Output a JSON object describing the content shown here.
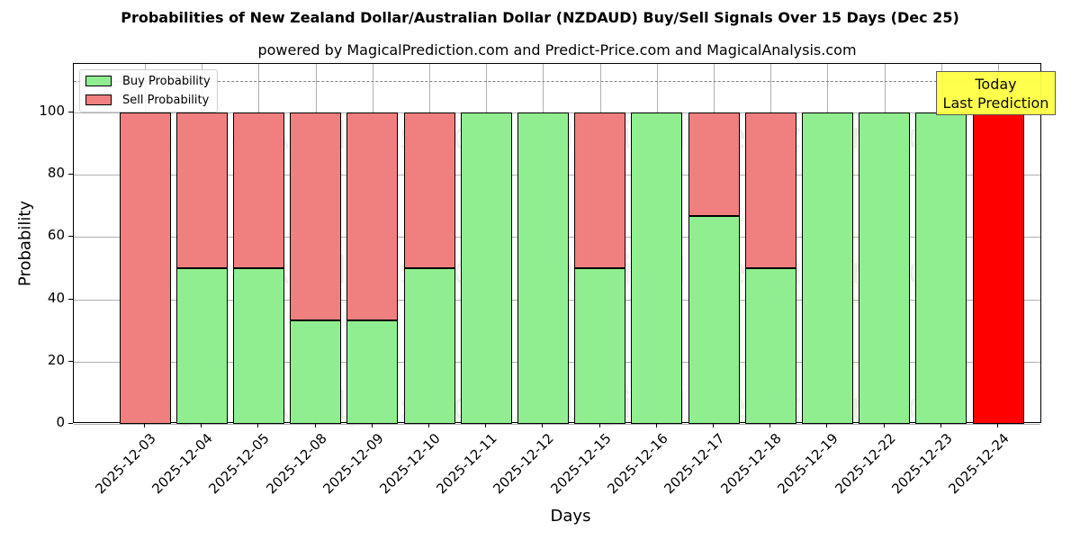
{
  "chart_data": {
    "type": "bar",
    "stacked": true,
    "title": "Probabilities of New Zealand Dollar/Australian Dollar (NZDAUD) Buy/Sell Signals Over 15 Days (Dec 25)",
    "subtitle": "powered by MagicalPrediction.com and Predict-Price.com and MagicalAnalysis.com",
    "xlabel": "Days",
    "ylabel": "Probability",
    "ylim": [
      0,
      115
    ],
    "yticks": [
      0,
      20,
      40,
      60,
      80,
      100
    ],
    "grid": true,
    "legend_position": "upper left",
    "categories": [
      "2025-12-03",
      "2025-12-04",
      "2025-12-05",
      "2025-12-08",
      "2025-12-09",
      "2025-12-10",
      "2025-12-11",
      "2025-12-12",
      "2025-12-15",
      "2025-12-16",
      "2025-12-17",
      "2025-12-18",
      "2025-12-19",
      "2025-12-22",
      "2025-12-23",
      "2025-12-24"
    ],
    "series": [
      {
        "name": "Buy Probability",
        "color": "#90ee90",
        "values": [
          0,
          50,
          50,
          33.3,
          33.3,
          50,
          100,
          100,
          50,
          100,
          66.7,
          50,
          100,
          100,
          100,
          0
        ]
      },
      {
        "name": "Sell Probability",
        "color": "#f08080",
        "values": [
          100,
          50,
          50,
          66.7,
          66.7,
          50,
          0,
          0,
          50,
          0,
          33.3,
          50,
          0,
          0,
          0,
          100
        ]
      }
    ],
    "highlight": {
      "index": 15,
      "color": "#ff0000",
      "label": "Today\nLast Prediction"
    },
    "reference_line": {
      "y": 110,
      "style": "dashed",
      "color": "#808080"
    },
    "watermarks": [
      "MagicalAnalysis.com",
      "MagicalPrediction.com"
    ]
  },
  "annotation": {
    "line1": "Today",
    "line2": "Last Prediction"
  },
  "legend": {
    "buy": "Buy Probability",
    "sell": "Sell Probability"
  }
}
